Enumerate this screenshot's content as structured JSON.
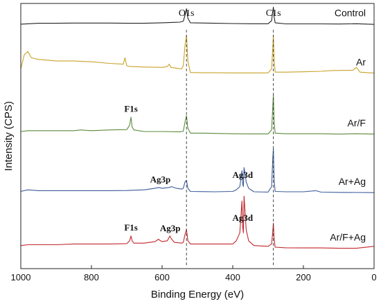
{
  "chart_data": {
    "type": "line",
    "title": "",
    "xlabel": "Binding Energy (eV)",
    "ylabel": "Intensity (CPS)",
    "xlim": [
      1000,
      0
    ],
    "x_reversed": true,
    "xticks": [
      1000,
      800,
      600,
      400,
      200,
      0
    ],
    "yticks": [],
    "grid": false,
    "legend": "none",
    "reference_lines": [
      {
        "label": "O1s",
        "x": 531
      },
      {
        "label": "C1s",
        "x": 285
      }
    ],
    "series": [
      {
        "name": "Control",
        "color": "#222222",
        "baseline_level": 0.92,
        "x": [
          1000,
          950,
          900,
          850,
          800,
          750,
          700,
          650,
          600,
          550,
          540,
          535,
          531,
          527,
          520,
          450,
          400,
          350,
          300,
          290,
          287,
          285,
          283,
          280,
          250,
          200,
          150,
          100,
          50,
          0
        ],
        "y": [
          0.3,
          0.9,
          0.9,
          1.0,
          1.0,
          1.0,
          0.9,
          0.9,
          1.2,
          1.6,
          2.2,
          6.0,
          10.0,
          4.0,
          1.2,
          0.9,
          0.7,
          0.6,
          0.6,
          2.5,
          8.0,
          11.0,
          5.0,
          1.2,
          0.5,
          0.5,
          0.5,
          0.4,
          0.6,
          0.2
        ]
      },
      {
        "name": "Ar",
        "color": "#c8a227",
        "baseline_level": 0.735,
        "x": [
          1000,
          990,
          980,
          970,
          950,
          900,
          850,
          800,
          750,
          710,
          705,
          700,
          690,
          650,
          600,
          585,
          580,
          575,
          560,
          545,
          540,
          535,
          531,
          527,
          520,
          480,
          450,
          400,
          350,
          300,
          290,
          287,
          285,
          283,
          280,
          250,
          200,
          150,
          120,
          60,
          50,
          40,
          0
        ],
        "y": [
          3.0,
          12.0,
          14.0,
          10.0,
          9.0,
          8.0,
          8.0,
          7.5,
          6.5,
          6.0,
          10.0,
          5.0,
          4.5,
          4.2,
          4.0,
          4.5,
          6.0,
          4.0,
          3.5,
          3.0,
          5.0,
          18.0,
          24.0,
          8.0,
          0.8,
          0.6,
          0.6,
          0.5,
          0.5,
          0.5,
          3.0,
          15.0,
          24.0,
          9.0,
          1.0,
          1.0,
          1.2,
          1.5,
          2.0,
          2.2,
          4.0,
          1.0,
          0.4
        ]
      },
      {
        "name": "Ar/F",
        "color": "#5a8a3a",
        "baseline_level": 0.505,
        "x": [
          1000,
          980,
          950,
          900,
          850,
          830,
          800,
          750,
          700,
          692,
          688,
          685,
          680,
          650,
          600,
          550,
          540,
          535,
          531,
          527,
          520,
          480,
          450,
          400,
          350,
          300,
          290,
          287,
          285,
          283,
          280,
          250,
          200,
          150,
          100,
          50,
          0
        ],
        "y": [
          2.0,
          2.5,
          2.5,
          2.5,
          2.5,
          3.0,
          2.5,
          3.0,
          3.2,
          6.0,
          11.0,
          5.0,
          3.0,
          2.0,
          2.0,
          1.8,
          2.2,
          8.0,
          12.0,
          4.0,
          1.0,
          1.0,
          0.8,
          0.6,
          0.5,
          0.5,
          3.0,
          16.0,
          25.0,
          8.0,
          1.0,
          0.6,
          0.6,
          0.6,
          0.4,
          0.6,
          0.4
        ]
      },
      {
        "name": "Ar+Ag",
        "color": "#3a5a9a",
        "baseline_level": 0.285,
        "x": [
          1000,
          980,
          950,
          900,
          850,
          800,
          750,
          700,
          650,
          620,
          610,
          600,
          580,
          573,
          560,
          545,
          540,
          535,
          531,
          527,
          520,
          480,
          450,
          400,
          390,
          380,
          374,
          372,
          370,
          368,
          362,
          355,
          340,
          300,
          290,
          287,
          285,
          283,
          280,
          250,
          200,
          165,
          150,
          100,
          0
        ],
        "y": [
          1.0,
          2.0,
          1.5,
          1.5,
          1.5,
          1.5,
          1.5,
          1.6,
          2.0,
          3.0,
          3.5,
          3.0,
          3.5,
          4.0,
          3.0,
          2.5,
          3.0,
          7.0,
          8.0,
          3.0,
          1.0,
          0.9,
          0.8,
          1.0,
          2.0,
          4.0,
          14.0,
          6.0,
          4.0,
          16.0,
          7.0,
          3.0,
          0.8,
          0.6,
          4.0,
          20.0,
          28.0,
          8.0,
          1.0,
          0.8,
          0.8,
          1.5,
          0.6,
          0.4,
          0.3
        ]
      },
      {
        "name": "Ar/F+Ag",
        "color": "#c0262b",
        "baseline_level": 0.075,
        "x": [
          1000,
          980,
          950,
          900,
          850,
          800,
          750,
          700,
          692,
          688,
          685,
          680,
          650,
          620,
          610,
          605,
          600,
          585,
          578,
          573,
          565,
          545,
          540,
          535,
          531,
          527,
          520,
          480,
          450,
          400,
          390,
          380,
          374,
          372,
          370,
          368,
          362,
          355,
          340,
          300,
          290,
          287,
          285,
          283,
          280,
          250,
          200,
          150,
          100,
          50,
          0
        ],
        "y": [
          2.0,
          2.5,
          2.5,
          2.5,
          3.0,
          3.0,
          3.0,
          3.2,
          5.0,
          8.0,
          5.0,
          3.5,
          3.5,
          4.5,
          6.0,
          5.0,
          4.5,
          5.0,
          8.0,
          6.0,
          4.0,
          3.5,
          4.0,
          9.0,
          12.0,
          5.0,
          3.0,
          3.0,
          3.0,
          3.0,
          5.0,
          10.0,
          30.0,
          14.0,
          10.0,
          33.0,
          12.0,
          5.0,
          2.0,
          1.5,
          3.0,
          10.0,
          16.0,
          6.0,
          1.0,
          0.6,
          0.5,
          0.5,
          0.3,
          0.3,
          1.5
        ]
      }
    ],
    "annotations": [
      {
        "text": "F1s",
        "series": "Ar/F",
        "x": 688
      },
      {
        "text": "Ag3p",
        "series": "Ar+Ag",
        "x": 605
      },
      {
        "text": "Ag3d",
        "series": "Ar+Ag",
        "x": 372
      },
      {
        "text": "F1s",
        "series": "Ar/F+Ag",
        "x": 688
      },
      {
        "text": "Ag3p",
        "series": "Ar/F+Ag",
        "x": 577
      },
      {
        "text": "Ag3d",
        "series": "Ar/F+Ag",
        "x": 372
      }
    ]
  }
}
